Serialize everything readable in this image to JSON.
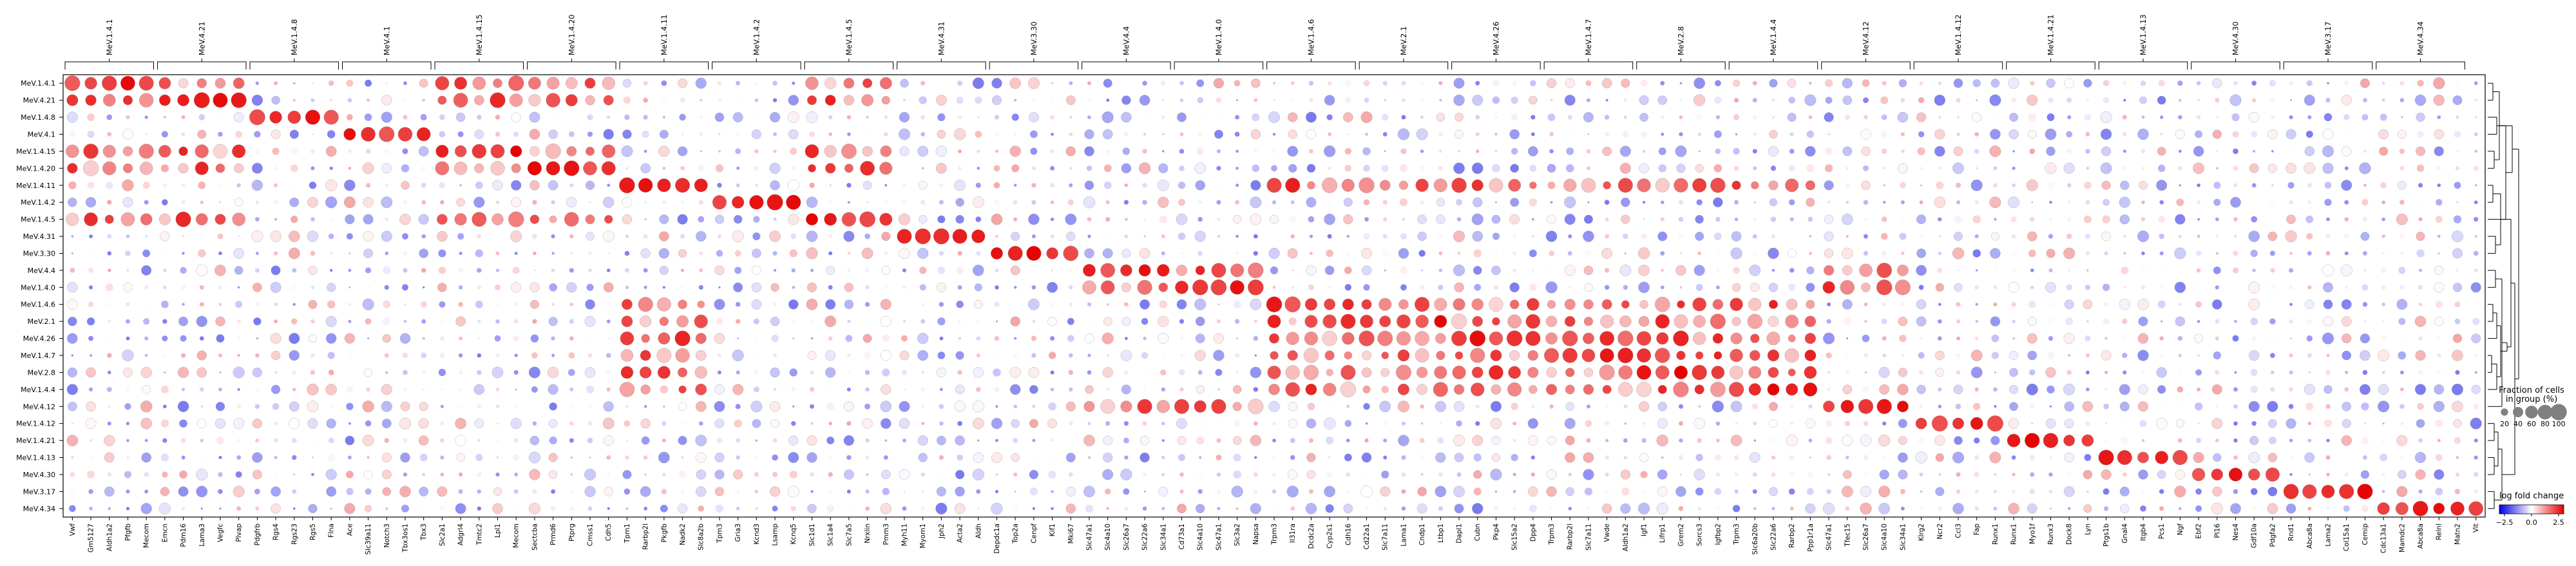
{
  "chart_data": {
    "type": "dotplot",
    "title": "",
    "rows": [
      "MeV.1.4.1",
      "MeV.4.21",
      "MeV.1.4.8",
      "MeV.4.1",
      "MeV.1.4.15",
      "MeV.1.4.20",
      "MeV.1.4.11",
      "MeV.1.4.2",
      "MeV.1.4.5",
      "MeV.4.31",
      "MeV.3.30",
      "MeV.4.4",
      "MeV.1.4.0",
      "MeV.1.4.6",
      "MeV.2.1",
      "MeV.4.26",
      "MeV.1.4.7",
      "MeV.2.8",
      "MeV.1.4.4",
      "MeV.4.12",
      "MeV.1.4.12",
      "MeV.1.4.21",
      "MeV.1.4.13",
      "MeV.4.30",
      "MeV.3.17",
      "MeV.4.34"
    ],
    "groups": [
      {
        "label": "MeV.1.4.1",
        "genes": [
          "Vwf",
          "Gm5127",
          "Aldh1a2",
          "Pfgfb",
          "Mecom"
        ]
      },
      {
        "label": "MeV.4.21",
        "genes": [
          "Emcn",
          "Pdm16",
          "Lama3",
          "Vegfc",
          "Plvap"
        ]
      },
      {
        "label": "MeV.1.4.8",
        "genes": [
          "Pdgfrb",
          "Rgs4",
          "Rgs23",
          "Rgs5",
          "Flna"
        ]
      },
      {
        "label": "MeV.4.1",
        "genes": [
          "Ace",
          "Slc39a11",
          "Notch3",
          "Tbx3os1",
          "Tbx3"
        ]
      },
      {
        "label": "MeV.1.4.15",
        "genes": [
          "Slc2a1",
          "Adgrl4",
          "Tmtc2",
          "Lpl1",
          "Mecom"
        ]
      },
      {
        "label": "MeV.1.4.20",
        "genes": [
          "Sectcba",
          "Prmd6",
          "Ptprg",
          "Cmss1",
          "Cdh5"
        ]
      },
      {
        "label": "MeV.1.4.11",
        "genes": [
          "Tpm1",
          "Rarbp2l",
          "Pkgfb",
          "Nadk2",
          "Slc8a2b"
        ]
      },
      {
        "label": "MeV.1.4.2",
        "genes": [
          "Tpm3",
          "Gria3",
          "Kcnd3",
          "Lsamp",
          "Kcnq5"
        ]
      },
      {
        "label": "MeV.1.4.5",
        "genes": [
          "Slc1d1",
          "Slc1a4",
          "Slc7a5",
          "Nrxlin",
          "Pmm3"
        ]
      },
      {
        "label": "MeV.4.31",
        "genes": [
          "Myh11",
          "Myom1",
          "Jph2",
          "Acta2",
          "Aldh"
        ]
      },
      {
        "label": "MeV.3.30",
        "genes": [
          "Depdc1a",
          "Top2a",
          "Cenpf",
          "Kif1",
          "Mki67"
        ]
      },
      {
        "label": "MeV.4.4",
        "genes": [
          "Slc47a1",
          "Slc4a10",
          "Slc26a7",
          "Slc22a6",
          "Slc34a1"
        ]
      },
      {
        "label": "MeV.1.4.0",
        "genes": [
          "Cd73a1",
          "Slc4a10",
          "Slc47a1",
          "Slc3a2",
          "Napsa"
        ]
      },
      {
        "label": "MeV.1.4.6",
        "genes": [
          "Trpm3",
          "Il31ra",
          "Dcdc2a",
          "Cyp2s1",
          "Cdh16"
        ]
      },
      {
        "label": "MeV.2.1",
        "genes": [
          "Cd22a1",
          "Slc7a11",
          "Lama1",
          "Cndp1",
          "Ltbp1"
        ]
      },
      {
        "label": "MeV.4.26",
        "genes": [
          "Dapl1",
          "Cubn",
          "Pkp4",
          "Slc15a2",
          "Dpp4"
        ]
      },
      {
        "label": "MeV.1.4.7",
        "genes": [
          "Trpm3",
          "Rarbp2l",
          "Slc7a11",
          "Vwde",
          "Aldh1a2"
        ]
      },
      {
        "label": "MeV.2.8",
        "genes": [
          "Igf1",
          "Lifrp1",
          "Grem2",
          "Sorcs3",
          "Igfbp2"
        ]
      },
      {
        "label": "MeV.1.4.4",
        "genes": [
          "Trpm3",
          "Slc6a20b",
          "Slc22a6",
          "Rarbp2",
          "Ppp1r1a"
        ]
      },
      {
        "label": "MeV.4.12",
        "genes": [
          "Slc47a1",
          "Tfec15",
          "Slc26a7",
          "Slc4a10",
          "Slc34a1"
        ]
      },
      {
        "label": "MeV.1.4.12",
        "genes": [
          "Klrg2",
          "Ncr2",
          "Ccl3",
          "Fap",
          "Runx1"
        ]
      },
      {
        "label": "MeV.1.4.21",
        "genes": [
          "Runx1",
          "Myo1f",
          "Runx3",
          "Dock8",
          "Lyn"
        ]
      },
      {
        "label": "MeV.1.4.13",
        "genes": [
          "Ptgs1b",
          "Gnal4",
          "Itgb4",
          "Pcs1",
          "Ngf"
        ]
      },
      {
        "label": "MeV.4.30",
        "genes": [
          "Ebf2",
          "Pl16",
          "Nes4",
          "Gdf10a",
          "Pdgfa2"
        ]
      },
      {
        "label": "MeV.3.17",
        "genes": [
          "Rnd1",
          "Abca8a",
          "Lama2",
          "Col15a1",
          "Cemip"
        ]
      },
      {
        "label": "MeV.4.34",
        "genes": [
          "Cdc13a1",
          "Mamdc2",
          "Abca8a",
          "Relnl",
          "Matn2"
        ]
      }
    ],
    "extra_genes": [
      "Vit"
    ],
    "expr_range": [
      -2.5,
      2.5
    ],
    "frac_range": [
      0,
      100
    ],
    "size_legend": {
      "title": "Fraction of cells\nin group (%)",
      "ticks": [
        "20",
        "40",
        "60",
        "80",
        "100"
      ]
    },
    "color_legend": {
      "title": "log fold change",
      "ticks": [
        "−2.5",
        "0.0",
        "2.5"
      ]
    },
    "colors": {
      "low": "#0000e6",
      "mid": "#ffffff",
      "high": "#e60000"
    },
    "dendrogram": true,
    "legend_position": "right"
  }
}
